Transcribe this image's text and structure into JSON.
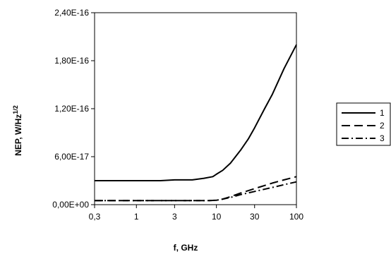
{
  "chart_data": {
    "type": "line",
    "x_scale": "log",
    "xlabel": "f, GHz",
    "ylabel_main": "NEP, W/Hz",
    "ylabel_sup": "1/2",
    "xlim": [
      0.3,
      100
    ],
    "ylim": [
      0,
      2.4e-16
    ],
    "x_ticks": [
      0.3,
      1,
      3,
      10,
      30,
      100
    ],
    "x_tick_labels": [
      "0,3",
      "1",
      "3",
      "10",
      "30",
      "100"
    ],
    "y_ticks": [
      0,
      6e-17,
      1.2e-16,
      1.8e-16,
      2.4e-16
    ],
    "y_tick_labels": [
      "0,00E+00",
      "6,00E-17",
      "1,20E-16",
      "1,80E-16",
      "2,40E-16"
    ],
    "grid": false,
    "legend_position": "right",
    "series": [
      {
        "name": "1",
        "style": "solid",
        "x": [
          0.3,
          1,
          2,
          3,
          5,
          7,
          9,
          10,
          12,
          15,
          20,
          25,
          30,
          40,
          50,
          70,
          100
        ],
        "y": [
          3e-17,
          3e-17,
          3e-17,
          3.1e-17,
          3.1e-17,
          3.3e-17,
          3.5e-17,
          3.8e-17,
          4.3e-17,
          5.2e-17,
          6.8e-17,
          8.2e-17,
          9.6e-17,
          1.2e-16,
          1.38e-16,
          1.7e-16,
          2e-16
        ]
      },
      {
        "name": "2",
        "style": "dash",
        "x": [
          0.3,
          1,
          3,
          5,
          8,
          10,
          12,
          15,
          20,
          30,
          50,
          70,
          100
        ],
        "y": [
          5e-18,
          5e-18,
          5e-18,
          5e-18,
          5e-18,
          5.5e-18,
          7e-18,
          1e-17,
          1.45e-17,
          2e-17,
          2.7e-17,
          3.1e-17,
          3.5e-17
        ]
      },
      {
        "name": "3",
        "style": "dashdot",
        "x": [
          0.3,
          1,
          3,
          5,
          8,
          10,
          12,
          15,
          20,
          30,
          50,
          70,
          100
        ],
        "y": [
          5e-18,
          5e-18,
          5e-18,
          5e-18,
          5e-18,
          5.5e-18,
          7e-18,
          9e-18,
          1.25e-17,
          1.65e-17,
          2.15e-17,
          2.5e-17,
          2.85e-17
        ]
      }
    ]
  }
}
